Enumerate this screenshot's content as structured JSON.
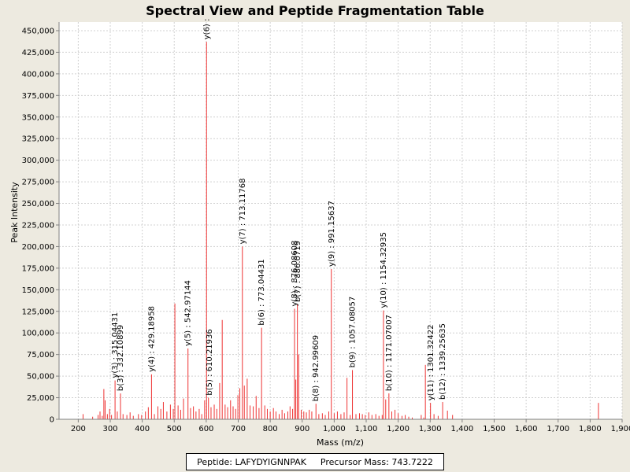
{
  "chart_data": {
    "type": "bar",
    "title": "Spectral View and Peptide Fragmentation Table",
    "xlabel": "Mass (m/z)",
    "ylabel": "Peak Intensity",
    "xlim": [
      140,
      1900
    ],
    "ylim": [
      0,
      460000
    ],
    "xticks": [
      200,
      300,
      400,
      500,
      600,
      700,
      800,
      900,
      1000,
      1100,
      1200,
      1300,
      1400,
      1500,
      1600,
      1700,
      1800,
      1900
    ],
    "xtick_labels": [
      "200",
      "300",
      "400",
      "500",
      "600",
      "700",
      "800",
      "900",
      "1,000",
      "1,100",
      "1,200",
      "1,300",
      "1,400",
      "1,500",
      "1,600",
      "1,700",
      "1,800",
      "1,900"
    ],
    "yticks": [
      0,
      25000,
      50000,
      75000,
      100000,
      125000,
      150000,
      175000,
      200000,
      225000,
      250000,
      275000,
      300000,
      325000,
      350000,
      375000,
      400000,
      425000,
      450000
    ],
    "ytick_labels": [
      "0",
      "25,000",
      "50,000",
      "75,000",
      "100,000",
      "125,000",
      "150,000",
      "175,000",
      "200,000",
      "225,000",
      "250,000",
      "275,000",
      "300,000",
      "325,000",
      "350,000",
      "375,000",
      "400,000",
      "425,000",
      "450,000"
    ],
    "grid": true,
    "peak_color": "#ee3333",
    "peaks": [
      [
        215,
        6000
      ],
      [
        245,
        3000
      ],
      [
        262,
        5000
      ],
      [
        268,
        9000
      ],
      [
        275,
        4000
      ],
      [
        280,
        35000
      ],
      [
        284,
        22000
      ],
      [
        291,
        6000
      ],
      [
        298,
        12000
      ],
      [
        304,
        5000
      ],
      [
        315,
        45000
      ],
      [
        322,
        9000
      ],
      [
        332,
        30000
      ],
      [
        340,
        6000
      ],
      [
        352,
        5000
      ],
      [
        362,
        8000
      ],
      [
        372,
        4000
      ],
      [
        388,
        6000
      ],
      [
        398,
        5000
      ],
      [
        410,
        9000
      ],
      [
        419,
        14000
      ],
      [
        429,
        52000
      ],
      [
        438,
        6000
      ],
      [
        449,
        15000
      ],
      [
        458,
        12000
      ],
      [
        466,
        20000
      ],
      [
        477,
        9000
      ],
      [
        488,
        17000
      ],
      [
        497,
        12000
      ],
      [
        502,
        134000
      ],
      [
        512,
        16000
      ],
      [
        520,
        11000
      ],
      [
        529,
        24000
      ],
      [
        543,
        82000
      ],
      [
        551,
        13000
      ],
      [
        560,
        15000
      ],
      [
        568,
        9000
      ],
      [
        578,
        12000
      ],
      [
        586,
        6000
      ],
      [
        595,
        22000
      ],
      [
        601,
        437000
      ],
      [
        607,
        25000
      ],
      [
        615,
        14000
      ],
      [
        625,
        17000
      ],
      [
        633,
        12000
      ],
      [
        642,
        42000
      ],
      [
        650,
        115000
      ],
      [
        659,
        17000
      ],
      [
        667,
        14000
      ],
      [
        676,
        22000
      ],
      [
        684,
        15000
      ],
      [
        692,
        12000
      ],
      [
        699,
        28000
      ],
      [
        705,
        36000
      ],
      [
        713,
        200000
      ],
      [
        719,
        39000
      ],
      [
        728,
        47000
      ],
      [
        737,
        16000
      ],
      [
        747,
        15000
      ],
      [
        756,
        27000
      ],
      [
        765,
        13000
      ],
      [
        773,
        106000
      ],
      [
        783,
        16000
      ],
      [
        791,
        12000
      ],
      [
        800,
        9000
      ],
      [
        810,
        13000
      ],
      [
        818,
        9000
      ],
      [
        828,
        6000
      ],
      [
        837,
        11000
      ],
      [
        845,
        7000
      ],
      [
        855,
        9000
      ],
      [
        862,
        15000
      ],
      [
        870,
        12000
      ],
      [
        876,
        128000
      ],
      [
        880,
        46000
      ],
      [
        885,
        133000
      ],
      [
        889,
        75000
      ],
      [
        897,
        11000
      ],
      [
        905,
        9000
      ],
      [
        913,
        8000
      ],
      [
        922,
        11000
      ],
      [
        930,
        9000
      ],
      [
        943,
        18000
      ],
      [
        952,
        6000
      ],
      [
        963,
        7000
      ],
      [
        972,
        5000
      ],
      [
        983,
        9000
      ],
      [
        991,
        174000
      ],
      [
        1000,
        7000
      ],
      [
        1010,
        9000
      ],
      [
        1021,
        6000
      ],
      [
        1031,
        8000
      ],
      [
        1040,
        48000
      ],
      [
        1050,
        5000
      ],
      [
        1057,
        57000
      ],
      [
        1068,
        6000
      ],
      [
        1079,
        7000
      ],
      [
        1088,
        6000
      ],
      [
        1097,
        5000
      ],
      [
        1108,
        8000
      ],
      [
        1118,
        5000
      ],
      [
        1130,
        6000
      ],
      [
        1140,
        4000
      ],
      [
        1150,
        5000
      ],
      [
        1154,
        126000
      ],
      [
        1161,
        23000
      ],
      [
        1171,
        30000
      ],
      [
        1180,
        9000
      ],
      [
        1190,
        11000
      ],
      [
        1200,
        7000
      ],
      [
        1212,
        4000
      ],
      [
        1222,
        5000
      ],
      [
        1233,
        3000
      ],
      [
        1244,
        2000
      ],
      [
        1272,
        5000
      ],
      [
        1280,
        2000
      ],
      [
        1285,
        63000
      ],
      [
        1301,
        19000
      ],
      [
        1312,
        6000
      ],
      [
        1325,
        4000
      ],
      [
        1339,
        20000
      ],
      [
        1354,
        10000
      ],
      [
        1370,
        5000
      ],
      [
        1826,
        19000
      ]
    ],
    "annotations": [
      {
        "mz": 315.04431,
        "intensity": 45000,
        "label": "y(3) : 315.04431"
      },
      {
        "mz": 332.10899,
        "intensity": 30000,
        "label": "b(3) : 332.10899"
      },
      {
        "mz": 429.18958,
        "intensity": 52000,
        "label": "y(4) : 429.18958"
      },
      {
        "mz": 542.97144,
        "intensity": 82000,
        "label": "y(5) : 542.97144"
      },
      {
        "mz": 610.21936,
        "intensity": 25000,
        "label": "b(5) : 610.21936"
      },
      {
        "mz": 601.0,
        "intensity": 437000,
        "label": "y(6) :"
      },
      {
        "mz": 713.11768,
        "intensity": 200000,
        "label": "y(7) : 713.11768"
      },
      {
        "mz": 773.04431,
        "intensity": 106000,
        "label": "b(6) : 773.04431"
      },
      {
        "mz": 876.08608,
        "intensity": 128000,
        "label": "y(8) : 876.08608"
      },
      {
        "mz": 886.0719,
        "intensity": 133000,
        "label": "b(7) : 886.0719"
      },
      {
        "mz": 942.99609,
        "intensity": 18000,
        "label": "b(8) : 942.99609"
      },
      {
        "mz": 991.15637,
        "intensity": 174000,
        "label": "y(9) : 991.15637"
      },
      {
        "mz": 1057.08057,
        "intensity": 57000,
        "label": "b(9) : 1057.08057"
      },
      {
        "mz": 1154.32935,
        "intensity": 126000,
        "label": "y(10) : 1154.32935"
      },
      {
        "mz": 1171.07007,
        "intensity": 30000,
        "label": "b(10) : 1171.07007"
      },
      {
        "mz": 1301.32422,
        "intensity": 19000,
        "label": "y(11) : 1301.32422"
      },
      {
        "mz": 1339.25635,
        "intensity": 20000,
        "label": "b(12) : 1339.25635"
      }
    ]
  },
  "footer": {
    "peptide": "Peptide: LAFYDYIGNNPAK",
    "precursor": "Precursor Mass: 743.7222"
  }
}
